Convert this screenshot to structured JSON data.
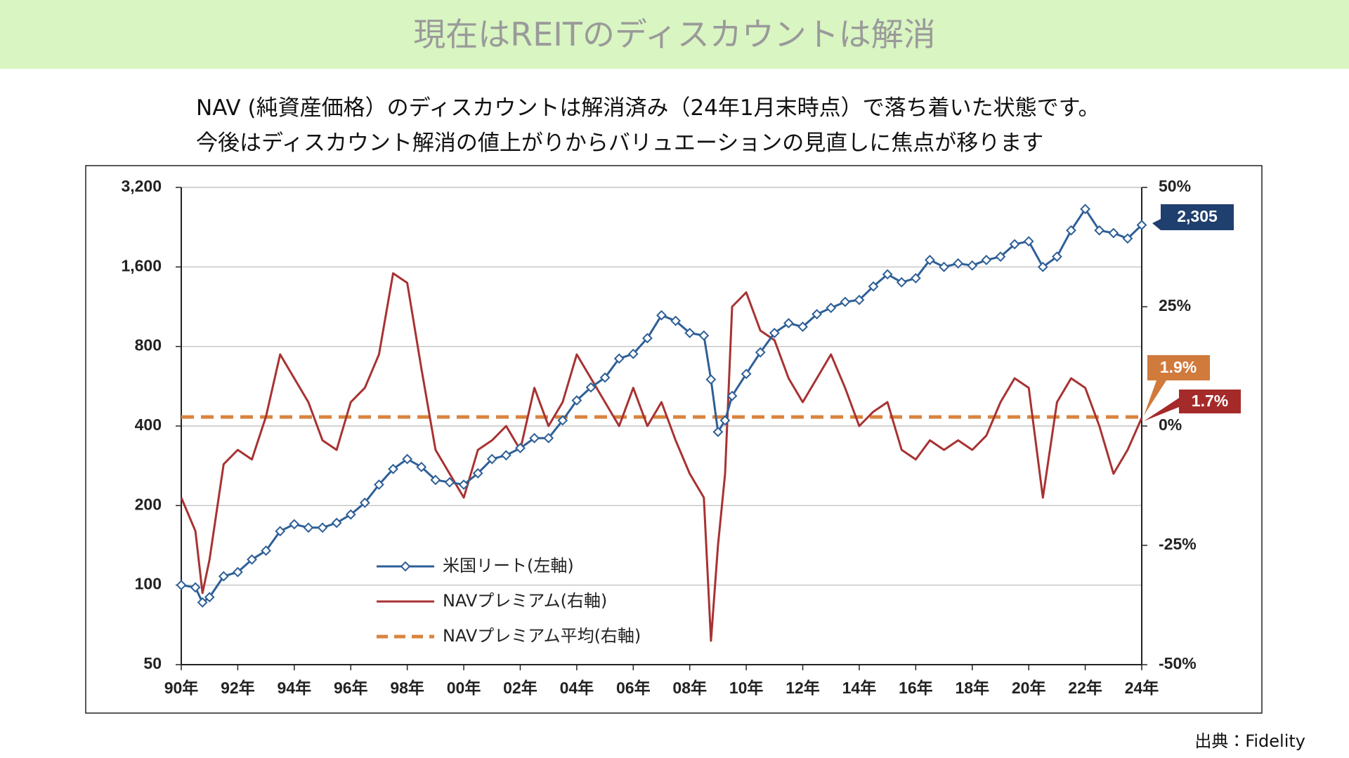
{
  "header": {
    "title": "現在はREITのディスカウントは解消"
  },
  "subtitle": [
    "NAV (純資産価格）のディスカウントは解消済み（24年1月末時点）で落ち着いた状態です。",
    "今後はディスカウント解消の値上がりからバリュエーションの見直しに焦点が移ります"
  ],
  "source": "出典：Fidelity",
  "chart_data": {
    "type": "line",
    "x": [
      1990,
      1990.5,
      1990.75,
      1991,
      1991.5,
      1992,
      1992.5,
      1993,
      1993.5,
      1994,
      1994.5,
      1995,
      1995.5,
      1996,
      1996.5,
      1997,
      1997.5,
      1998,
      1998.5,
      1999,
      1999.5,
      2000,
      2000.5,
      2001,
      2001.5,
      2002,
      2002.5,
      2003,
      2003.5,
      2004,
      2004.5,
      2005,
      2005.5,
      2006,
      2006.5,
      2007,
      2007.5,
      2008,
      2008.5,
      2008.75,
      2009,
      2009.25,
      2009.5,
      2010,
      2010.5,
      2011,
      2011.5,
      2012,
      2012.5,
      2013,
      2013.5,
      2014,
      2014.5,
      2015,
      2015.5,
      2016,
      2016.5,
      2017,
      2017.5,
      2018,
      2018.5,
      2019,
      2019.5,
      2020,
      2020.5,
      2021,
      2021.5,
      2022,
      2022.5,
      2023,
      2023.5,
      2024
    ],
    "xlim": [
      1990,
      2024
    ],
    "xticks": [
      {
        "value": 1990,
        "label": "90年"
      },
      {
        "value": 1992,
        "label": "92年"
      },
      {
        "value": 1994,
        "label": "94年"
      },
      {
        "value": 1996,
        "label": "96年"
      },
      {
        "value": 1998,
        "label": "98年"
      },
      {
        "value": 2000,
        "label": "00年"
      },
      {
        "value": 2002,
        "label": "02年"
      },
      {
        "value": 2004,
        "label": "04年"
      },
      {
        "value": 2006,
        "label": "06年"
      },
      {
        "value": 2008,
        "label": "08年"
      },
      {
        "value": 2010,
        "label": "10年"
      },
      {
        "value": 2012,
        "label": "12年"
      },
      {
        "value": 2014,
        "label": "14年"
      },
      {
        "value": 2016,
        "label": "16年"
      },
      {
        "value": 2018,
        "label": "18年"
      },
      {
        "value": 2020,
        "label": "20年"
      },
      {
        "value": 2022,
        "label": "22年"
      },
      {
        "value": 2024,
        "label": "24年"
      }
    ],
    "ylim": [
      50,
      3200
    ],
    "log_y": true,
    "yticks": [
      50,
      100,
      200,
      400,
      800,
      {
        "value": 1600,
        "label": "1,600"
      },
      {
        "value": 3200,
        "label": "3,200"
      }
    ],
    "y2lim": [
      -50,
      50
    ],
    "y2ticks": [
      {
        "value": -50,
        "label": "-50%"
      },
      {
        "value": -25,
        "label": "-25%"
      },
      {
        "value": 0,
        "label": "0%"
      },
      {
        "value": 25,
        "label": "25%"
      },
      {
        "value": 50,
        "label": "50%"
      }
    ],
    "grid": true,
    "series": [
      {
        "name": "米国リート(左軸)",
        "color": "#2e5f97",
        "markers": true,
        "end_label": "2,305",
        "values": [
          100,
          98,
          86,
          90,
          108,
          112,
          125,
          135,
          160,
          170,
          165,
          165,
          172,
          185,
          205,
          240,
          275,
          300,
          280,
          250,
          245,
          240,
          265,
          300,
          310,
          330,
          360,
          360,
          420,
          500,
          560,
          610,
          720,
          750,
          860,
          1050,
          1000,
          900,
          880,
          600,
          380,
          420,
          520,
          630,
          760,
          900,
          980,
          950,
          1060,
          1120,
          1180,
          1200,
          1350,
          1500,
          1400,
          1450,
          1700,
          1600,
          1650,
          1620,
          1700,
          1750,
          1950,
          2000,
          1600,
          1750,
          2200,
          2650,
          2200,
          2150,
          2050,
          2305
        ]
      },
      {
        "name": "NAVプレミアム(右軸)",
        "color": "#a83232",
        "axis": "y2",
        "end_label": "1.7%",
        "values": [
          -15,
          -22,
          -35,
          -28,
          -8,
          -5,
          -7,
          2,
          15,
          10,
          5,
          -3,
          -5,
          5,
          8,
          15,
          32,
          30,
          12,
          -5,
          -10,
          -15,
          -5,
          -3,
          0,
          -5,
          8,
          0,
          5,
          15,
          10,
          5,
          0,
          8,
          0,
          5,
          -3,
          -10,
          -15,
          -45,
          -25,
          -10,
          25,
          28,
          20,
          18,
          10,
          5,
          10,
          15,
          8,
          0,
          3,
          5,
          -5,
          -7,
          -3,
          -5,
          -3,
          -5,
          -2,
          5,
          10,
          8,
          -15,
          5,
          10,
          8,
          0,
          -10,
          -5,
          1.7
        ]
      }
    ],
    "reference_lines": [
      {
        "name": "NAVプレミアム平均(右軸)",
        "color": "#d9843f",
        "axis": "y2",
        "dashed": true,
        "value": 1.9,
        "value_label": "1.9%"
      }
    ]
  }
}
